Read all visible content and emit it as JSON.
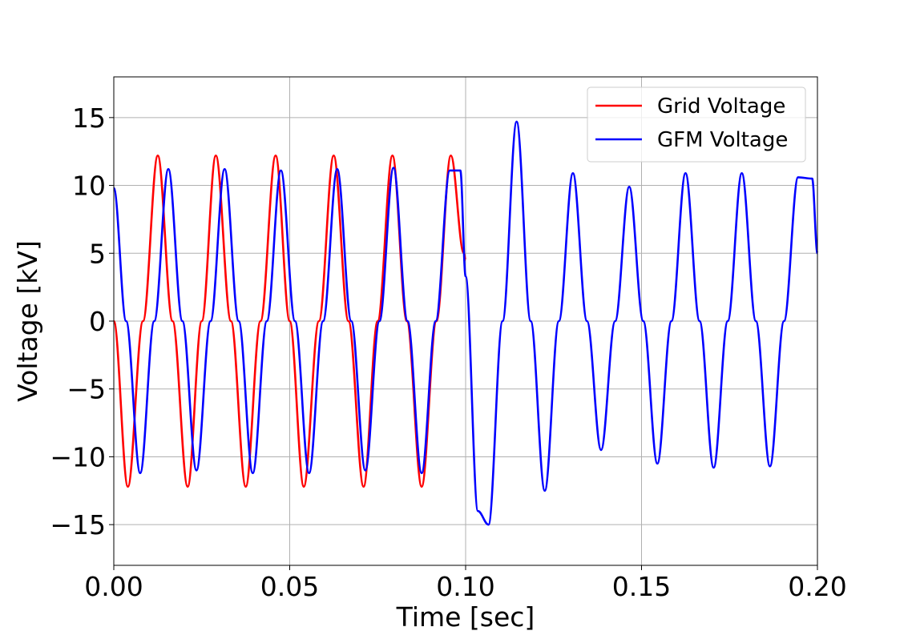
{
  "chart_data": {
    "type": "line",
    "title": "",
    "xlabel": "Time [sec]",
    "ylabel": "Voltage [kV]",
    "xlim": [
      0.0,
      0.2
    ],
    "ylim": [
      -18,
      18
    ],
    "x_ticks": [
      0.0,
      0.05,
      0.1,
      0.15,
      0.2
    ],
    "x_tick_labels": [
      "0.00",
      "0.05",
      "0.10",
      "0.15",
      "0.20"
    ],
    "y_ticks": [
      -15,
      -10,
      -5,
      0,
      5,
      10,
      15
    ],
    "y_tick_labels": [
      "−15",
      "−10",
      "−5",
      "0",
      "5",
      "10",
      "15"
    ],
    "grid": true,
    "legend_position": "top-right",
    "series": [
      {
        "name": "Grid Voltage",
        "color": "#ff0000",
        "x": [
          0.0,
          0.004,
          0.0083,
          0.0125,
          0.0167,
          0.021,
          0.025,
          0.029,
          0.0333,
          0.0375,
          0.0417,
          0.046,
          0.05,
          0.054,
          0.0583,
          0.0625,
          0.0667,
          0.071,
          0.075,
          0.0792,
          0.0833,
          0.0875,
          0.0917,
          0.0958,
          0.0995,
          0.1
        ],
        "y": [
          0.0,
          -12.2,
          0.0,
          12.2,
          0.0,
          -12.2,
          0.0,
          12.2,
          0.0,
          -12.2,
          0.0,
          12.2,
          0.0,
          -12.2,
          0.0,
          12.2,
          0.0,
          -12.2,
          0.0,
          12.2,
          0.0,
          -12.2,
          0.0,
          12.2,
          5.0,
          4.5
        ]
      },
      {
        "name": "GFM Voltage",
        "color": "#0000ff",
        "x": [
          0.0,
          0.0035,
          0.0075,
          0.0115,
          0.0155,
          0.0195,
          0.0235,
          0.0275,
          0.0315,
          0.0355,
          0.0395,
          0.0435,
          0.0475,
          0.0515,
          0.0555,
          0.0595,
          0.0635,
          0.0675,
          0.0715,
          0.0755,
          0.0795,
          0.0835,
          0.0875,
          0.0915,
          0.0955,
          0.0985,
          0.1,
          0.1035,
          0.1065,
          0.1105,
          0.1145,
          0.1185,
          0.1225,
          0.1265,
          0.1305,
          0.1345,
          0.1385,
          0.1425,
          0.1465,
          0.1505,
          0.1545,
          0.1585,
          0.1625,
          0.1665,
          0.1705,
          0.1745,
          0.1785,
          0.1825,
          0.1865,
          0.1905,
          0.1945,
          0.1985,
          0.2
        ],
        "y": [
          9.8,
          0.0,
          -11.2,
          0.0,
          11.2,
          0.0,
          -11.0,
          0.0,
          11.2,
          0.0,
          -11.2,
          0.0,
          11.1,
          0.0,
          -11.2,
          0.0,
          11.2,
          0.0,
          -11.0,
          0.0,
          11.3,
          0.0,
          -11.2,
          0.0,
          11.1,
          11.1,
          3.3,
          -14.0,
          -15.0,
          0.0,
          14.7,
          0.0,
          -12.5,
          0.0,
          10.9,
          0.0,
          -9.5,
          0.0,
          9.9,
          0.0,
          -10.5,
          0.0,
          10.9,
          0.0,
          -10.8,
          0.0,
          10.9,
          0.0,
          -10.7,
          0.0,
          10.6,
          10.5,
          5.0
        ]
      }
    ]
  }
}
